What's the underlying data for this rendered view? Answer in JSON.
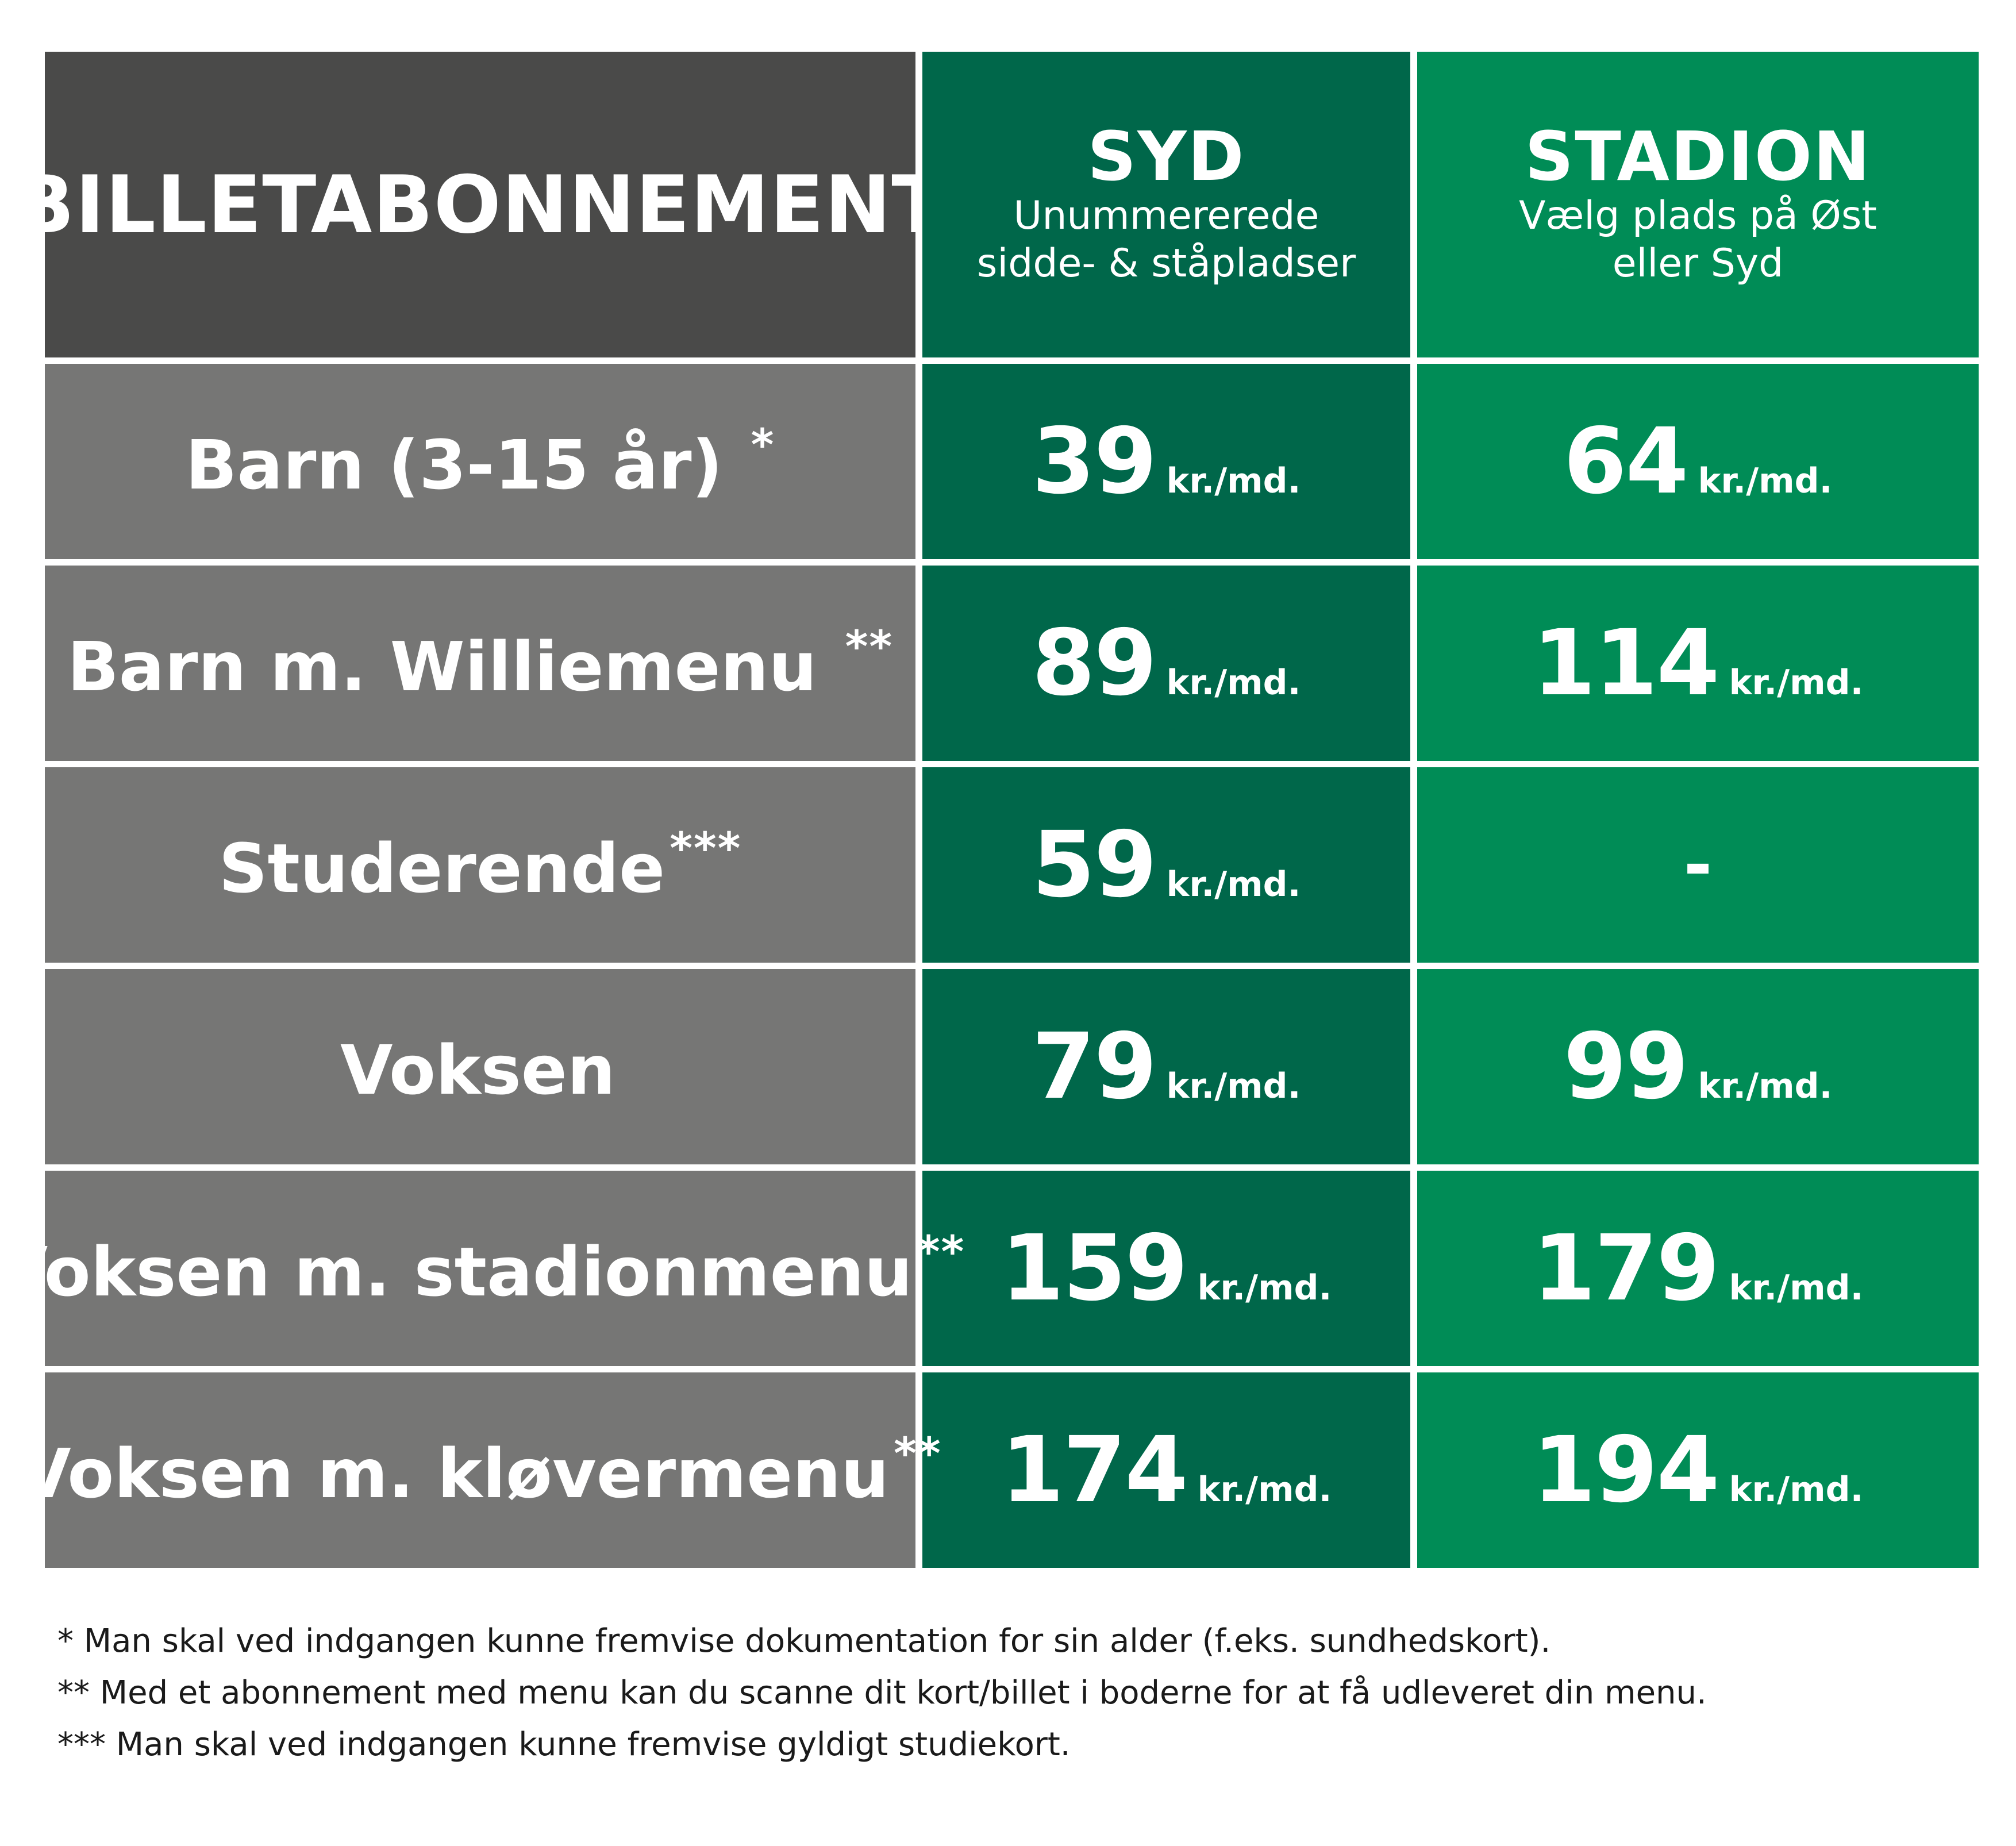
{
  "header": {
    "title": "BILLETABONNEMENT",
    "syd": {
      "name": "SYD",
      "sub_line1": "Unummererede",
      "sub_line2": "sidde- & ståpladser"
    },
    "stadion": {
      "name": "STADION",
      "sub_line1": "Vælg plads på Øst",
      "sub_line2": "eller Syd"
    }
  },
  "rows": [
    {
      "label": "Barn (3-15 år) ",
      "marker": "*",
      "syd": "39",
      "syd_unit": "kr./md.",
      "stadion": "64",
      "stadion_unit": "kr./md."
    },
    {
      "label": "Barn m. Williemenu ",
      "marker": "**",
      "syd": "89",
      "syd_unit": "kr./md.",
      "stadion": "114",
      "stadion_unit": "kr./md."
    },
    {
      "label": "Studerende",
      "marker": "***",
      "syd": "59",
      "syd_unit": "kr./md.",
      "stadion": "-",
      "stadion_unit": ""
    },
    {
      "label": "Voksen",
      "marker": "",
      "syd": "79",
      "syd_unit": "kr./md.",
      "stadion": "99",
      "stadion_unit": "kr./md."
    },
    {
      "label": "Voksen m. stadionmenu",
      "marker": "**",
      "syd": "159",
      "syd_unit": "kr./md.",
      "stadion": "179",
      "stadion_unit": "kr./md."
    },
    {
      "label": "Voksen m. kløvermenu",
      "marker": "**",
      "syd": "174",
      "syd_unit": "kr./md.",
      "stadion": "194",
      "stadion_unit": "kr./md."
    }
  ],
  "footnotes": [
    "*  Man skal ved indgangen kunne fremvise dokumentation for sin alder (f.eks. sundhedskort).",
    "** Med et abonnement med menu kan du scanne dit kort/billet i boderne for at få udleveret din menu.",
    "*** Man skal ved indgangen kunne fremvise gyldigt studiekort."
  ],
  "colors": {
    "header_label": "#4a4a49",
    "row_label": "#767675",
    "syd": "#00674a",
    "stadion": "#008c56"
  }
}
